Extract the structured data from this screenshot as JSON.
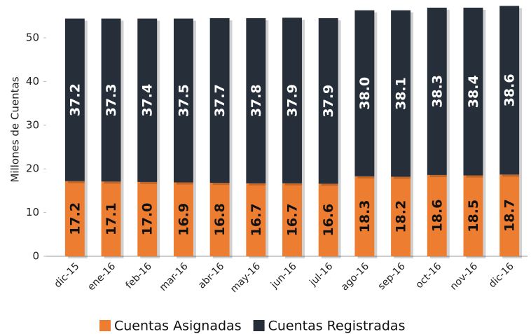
{
  "chart_data": {
    "type": "stacked_bar",
    "y_label": "Millones de Cuentas",
    "categories": [
      "dic-15",
      "ene-16",
      "feb-16",
      "mar-16",
      "abr-16",
      "may-16",
      "jun-16",
      "jul-16",
      "ago-16",
      "sep-16",
      "oct-16",
      "nov-16",
      "dic-16"
    ],
    "series": [
      {
        "name": "Cuentas Asignadas",
        "color": "#ed7d31",
        "values": [
          17.2,
          17.1,
          17.0,
          16.9,
          16.8,
          16.7,
          16.7,
          16.6,
          18.3,
          18.2,
          18.6,
          18.5,
          18.7
        ],
        "value_labels": [
          "17.2",
          "17.1",
          "17.0",
          "16.9",
          "16.8",
          "16.7",
          "16.7",
          "16.6",
          "18.3",
          "18.2",
          "18.6",
          "18.5",
          "18.7"
        ]
      },
      {
        "name": "Cuentas Registradas",
        "color": "#262e3a",
        "values": [
          37.2,
          37.3,
          37.4,
          37.5,
          37.7,
          37.8,
          37.9,
          37.9,
          38.0,
          38.1,
          38.3,
          38.4,
          38.6
        ],
        "value_labels": [
          "37.2",
          "37.3",
          "37.4",
          "37.5",
          "37.7",
          "37.8",
          "37.9",
          "37.9",
          "38.0",
          "38.1",
          "38.3",
          "38.4",
          "38.6"
        ]
      }
    ],
    "ylim": [
      0,
      58
    ],
    "yticks": [
      0,
      10,
      20,
      30,
      40,
      50
    ],
    "legend": "bottom"
  }
}
